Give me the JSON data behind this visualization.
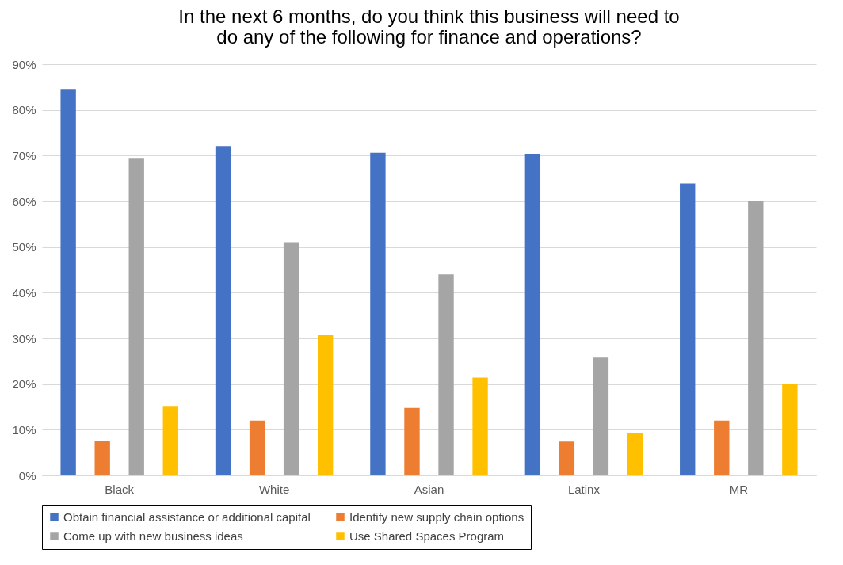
{
  "chart_data": {
    "type": "bar",
    "title": "In the next 6 months, do you think this business will need to do any of the following for finance and operations?",
    "categories": [
      "Black",
      "White",
      "Asian",
      "Latinx",
      "MR"
    ],
    "series": [
      {
        "name": "Obtain financial assistance or additional capital",
        "color": "#4472c4",
        "values": [
          84.6,
          72.1,
          70.6,
          70.4,
          63.9
        ]
      },
      {
        "name": "Identify new supply chain options",
        "color": "#ed7d31",
        "values": [
          7.6,
          12,
          14.8,
          7.4,
          12
        ]
      },
      {
        "name": "Come up with new business ideas",
        "color": "#a5a5a5",
        "values": [
          69.3,
          50.9,
          44,
          25.8,
          60
        ]
      },
      {
        "name": "Use Shared Spaces Program",
        "color": "#ffc000",
        "values": [
          15.2,
          30.7,
          21.4,
          9.3,
          20
        ]
      }
    ],
    "ylim": [
      0,
      90
    ],
    "yticks": [
      {
        "value": 0,
        "label": "0%"
      },
      {
        "value": 10,
        "label": "10%"
      },
      {
        "value": 20,
        "label": "20%"
      },
      {
        "value": 30,
        "label": "30%"
      },
      {
        "value": 40,
        "label": "40%"
      },
      {
        "value": 50,
        "label": "50%"
      },
      {
        "value": 60,
        "label": "60%"
      },
      {
        "value": 70,
        "label": "70%"
      },
      {
        "value": 80,
        "label": "80%"
      },
      {
        "value": 90,
        "label": "90%"
      }
    ],
    "grid": "y",
    "legend": "bottom"
  }
}
